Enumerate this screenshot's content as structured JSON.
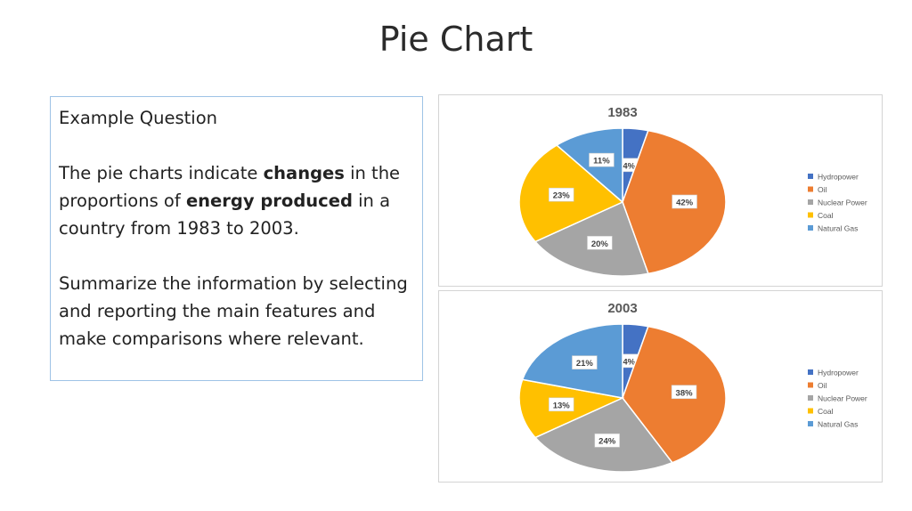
{
  "slide": {
    "title": "Pie Chart"
  },
  "question": {
    "heading": "Example Question",
    "line1_a": "The pie charts indicate ",
    "line1_b": "changes",
    "line1_c": " in the proportions of ",
    "line1_d": "energy produced",
    "line1_e": " in a country from 1983 to 2003.",
    "line2": "Summarize the information by selecting and reporting the main features and make comparisons where relevant."
  },
  "colors": {
    "Hydropower": "#4472c4",
    "Oil": "#ed7d31",
    "Nuclear Power": "#a5a5a5",
    "Coal": "#ffc000",
    "Natural Gas": "#5b9bd5"
  },
  "chart_data": [
    {
      "type": "pie",
      "title": "1983",
      "categories": [
        "Hydropower",
        "Oil",
        "Nuclear Power",
        "Coal",
        "Natural Gas"
      ],
      "values": [
        4,
        42,
        20,
        23,
        11
      ],
      "labels": [
        "4%",
        "42%",
        "20%",
        "23%",
        "11%"
      ],
      "legend_position": "right"
    },
    {
      "type": "pie",
      "title": "2003",
      "categories": [
        "Hydropower",
        "Oil",
        "Nuclear Power",
        "Coal",
        "Natural Gas"
      ],
      "values": [
        4,
        38,
        24,
        13,
        21
      ],
      "labels": [
        "4%",
        "38%",
        "24%",
        "13%",
        "21%"
      ],
      "legend_position": "right"
    }
  ]
}
